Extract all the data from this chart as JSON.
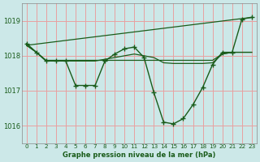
{
  "title": "Graphe pression niveau de la mer (hPa)",
  "background_color": "#cce8e8",
  "grid_color": "#e8a0a0",
  "line_color": "#1a5c1a",
  "ylim": [
    1015.5,
    1019.5
  ],
  "xlim": [
    -0.5,
    23.5
  ],
  "yticks": [
    1016,
    1017,
    1018,
    1019
  ],
  "xticks": [
    0,
    1,
    2,
    3,
    4,
    5,
    6,
    7,
    8,
    9,
    10,
    11,
    12,
    13,
    14,
    15,
    16,
    17,
    18,
    19,
    20,
    21,
    22,
    23
  ],
  "marker_line": {
    "x": [
      0,
      1,
      2,
      3,
      4,
      5,
      6,
      7,
      8,
      9,
      10,
      11,
      12,
      13,
      14,
      15,
      16,
      17,
      18,
      19,
      20,
      21,
      22,
      23
    ],
    "y": [
      1018.35,
      1018.1,
      1017.85,
      1017.85,
      1017.85,
      1017.15,
      1017.15,
      1017.15,
      1017.85,
      1018.05,
      1018.2,
      1018.25,
      1017.95,
      1016.95,
      1016.1,
      1016.05,
      1016.2,
      1016.6,
      1017.1,
      1017.75,
      1018.1,
      1018.1,
      1019.05,
      1019.1
    ]
  },
  "smooth_lines": [
    {
      "x": [
        0,
        1,
        2,
        3,
        4,
        5,
        6,
        7,
        8,
        9,
        10,
        11,
        12,
        13,
        14,
        15,
        16,
        17,
        18,
        19,
        20,
        21,
        22,
        23
      ],
      "y": [
        1018.3,
        1018.1,
        1017.85,
        1017.85,
        1017.85,
        1017.85,
        1017.85,
        1017.85,
        1017.9,
        1017.95,
        1018.0,
        1018.05,
        1018.0,
        1017.95,
        1017.8,
        1017.78,
        1017.78,
        1017.78,
        1017.78,
        1017.8,
        1018.05,
        1018.1,
        1018.1,
        1018.1
      ]
    },
    {
      "x": [
        0,
        1,
        2,
        3,
        4,
        5,
        6,
        7,
        8,
        9,
        10,
        11,
        12,
        13,
        14,
        15,
        16,
        17,
        18,
        19,
        20,
        21,
        22,
        23
      ],
      "y": [
        1018.3,
        1018.1,
        1017.87,
        1017.87,
        1017.87,
        1017.87,
        1017.87,
        1017.87,
        1017.87,
        1017.87,
        1017.87,
        1017.87,
        1017.87,
        1017.87,
        1017.87,
        1017.87,
        1017.87,
        1017.87,
        1017.87,
        1017.87,
        1018.05,
        1018.1,
        1018.1,
        1018.1
      ]
    },
    {
      "x": [
        0,
        23
      ],
      "y": [
        1018.3,
        1019.1
      ]
    }
  ]
}
